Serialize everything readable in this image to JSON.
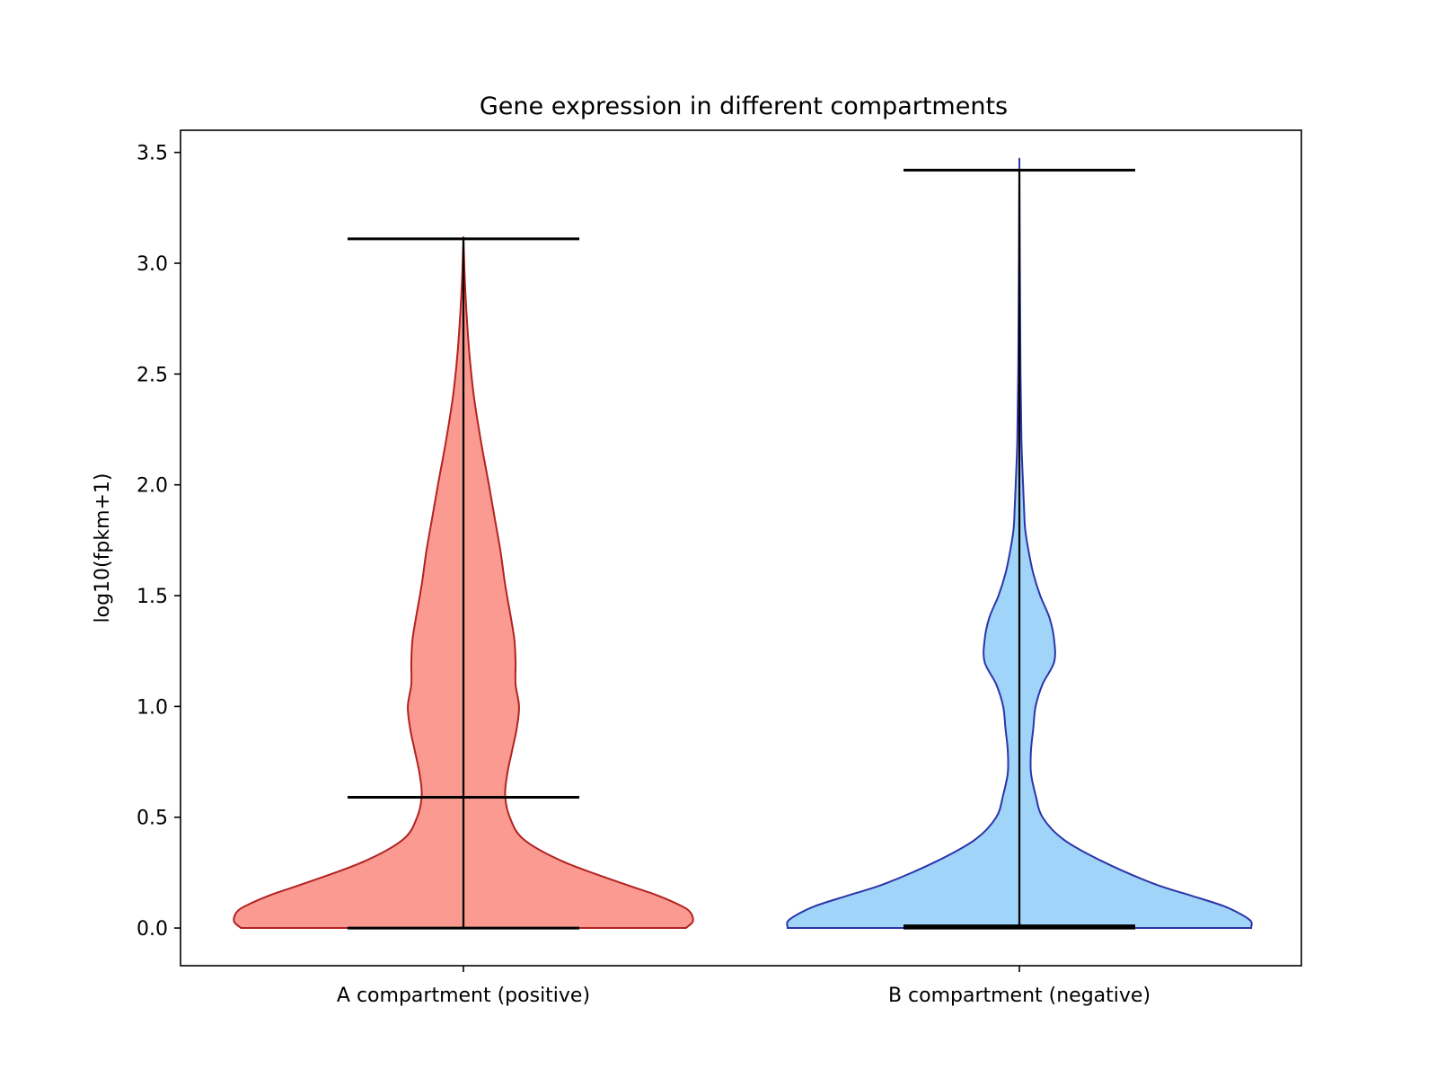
{
  "chart_data": {
    "type": "violin",
    "title": "Gene expression in different compartments",
    "xlabel": "",
    "ylabel": "log10(fpkm+1)",
    "ylim": [
      -0.17,
      3.6
    ],
    "yticks": [
      "0.0",
      "0.5",
      "1.0",
      "1.5",
      "2.0",
      "2.5",
      "3.0",
      "3.5"
    ],
    "grid": false,
    "categories": [
      "A compartment (positive)",
      "B compartment (negative)"
    ],
    "series": [
      {
        "category": "A compartment (positive)",
        "fill_color": "#fa9a90",
        "edge_color": "#b22222",
        "min": 0.0,
        "max": 3.11,
        "median": 0.59,
        "density": [
          [
            0.0,
            0.96
          ],
          [
            0.03,
            0.99
          ],
          [
            0.07,
            0.98
          ],
          [
            0.1,
            0.94
          ],
          [
            0.15,
            0.83
          ],
          [
            0.2,
            0.69
          ],
          [
            0.3,
            0.43
          ],
          [
            0.4,
            0.26
          ],
          [
            0.5,
            0.2
          ],
          [
            0.6,
            0.18
          ],
          [
            0.7,
            0.19
          ],
          [
            0.8,
            0.21
          ],
          [
            0.9,
            0.23
          ],
          [
            1.0,
            0.24
          ],
          [
            1.1,
            0.225
          ],
          [
            1.2,
            0.225
          ],
          [
            1.3,
            0.22
          ],
          [
            1.4,
            0.205
          ],
          [
            1.55,
            0.18
          ],
          [
            1.7,
            0.16
          ],
          [
            1.85,
            0.135
          ],
          [
            2.0,
            0.11
          ],
          [
            2.2,
            0.075
          ],
          [
            2.4,
            0.045
          ],
          [
            2.6,
            0.025
          ],
          [
            2.8,
            0.012
          ],
          [
            2.95,
            0.005
          ],
          [
            3.05,
            0.002
          ],
          [
            3.11,
            0.0
          ]
        ]
      },
      {
        "category": "B compartment (negative)",
        "fill_color": "#a0d4f8",
        "edge_color": "#2b35a8",
        "min": 0.0,
        "max": 3.42,
        "median": 0.01,
        "density": [
          [
            0.0,
            1.0
          ],
          [
            0.03,
            1.0
          ],
          [
            0.06,
            0.96
          ],
          [
            0.1,
            0.88
          ],
          [
            0.15,
            0.73
          ],
          [
            0.2,
            0.58
          ],
          [
            0.3,
            0.36
          ],
          [
            0.4,
            0.19
          ],
          [
            0.5,
            0.1
          ],
          [
            0.6,
            0.07
          ],
          [
            0.7,
            0.05
          ],
          [
            0.8,
            0.05
          ],
          [
            0.9,
            0.06
          ],
          [
            1.0,
            0.07
          ],
          [
            1.1,
            0.1
          ],
          [
            1.2,
            0.15
          ],
          [
            1.3,
            0.15
          ],
          [
            1.4,
            0.13
          ],
          [
            1.5,
            0.09
          ],
          [
            1.6,
            0.06
          ],
          [
            1.7,
            0.04
          ],
          [
            1.8,
            0.025
          ],
          [
            1.9,
            0.02
          ],
          [
            2.0,
            0.016
          ],
          [
            2.2,
            0.009
          ],
          [
            2.5,
            0.005
          ],
          [
            3.0,
            0.002
          ],
          [
            3.42,
            0.0
          ]
        ]
      }
    ]
  }
}
